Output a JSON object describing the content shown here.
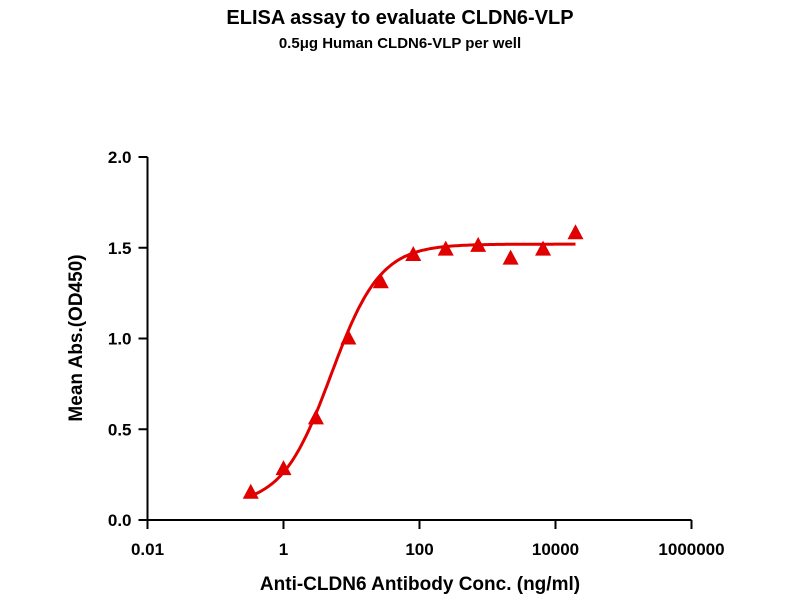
{
  "chart_data": {
    "type": "scatter",
    "title": "ELISA assay to evaluate CLDN6-VLP",
    "subtitle": "0.5μg Human CLDN6-VLP per well",
    "xlabel": "Anti-CLDN6 Antibody Conc. (ng/ml)",
    "ylabel": "Mean Abs.(OD450)",
    "xscale": "log",
    "xlim": [
      0.01,
      1000000
    ],
    "ylim": [
      0,
      2.0
    ],
    "xticks": [
      "0.01",
      "1",
      "100",
      "10000",
      "1000000"
    ],
    "yticks": [
      "0.0",
      "0.5",
      "1.0",
      "1.5",
      "2.0"
    ],
    "grid": false,
    "color": "#e00000",
    "marker": "triangle",
    "series": [
      {
        "x": [
          0.33,
          1,
          3,
          9,
          27,
          81,
          243,
          729,
          2187,
          6561,
          19683
        ],
        "y": [
          0.15,
          0.28,
          0.56,
          1.0,
          1.31,
          1.46,
          1.49,
          1.51,
          1.44,
          1.49,
          1.58
        ]
      }
    ],
    "fit": {
      "model": "4PL",
      "bottom": 0.08,
      "top": 1.52,
      "ec50": 5,
      "hill": 1.2,
      "x_range": [
        0.33,
        19683
      ]
    }
  }
}
